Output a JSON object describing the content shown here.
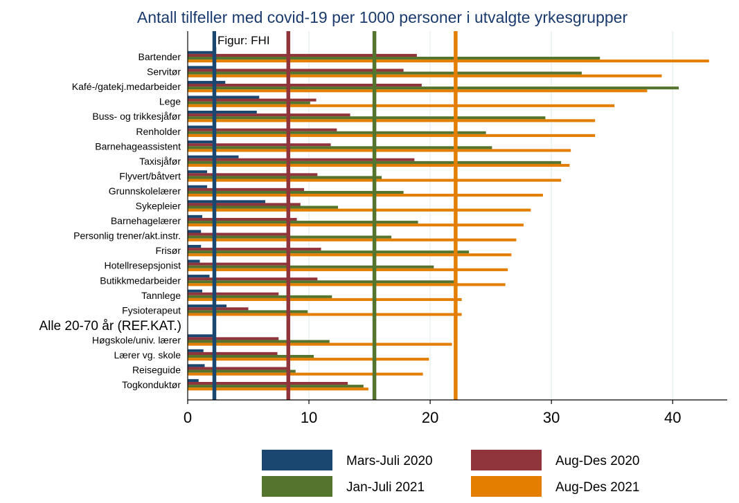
{
  "chart_data": {
    "type": "bar",
    "orientation": "horizontal",
    "title": "Antall tilfeller med covid-19 per 1000 personer i utvalgte yrkesgrupper",
    "annotation": "Figur: FHI",
    "xlabel": "",
    "ylabel": "",
    "xlim": [
      0,
      44.5
    ],
    "xticks": [
      0,
      10,
      20,
      30,
      40
    ],
    "grid": "vertical",
    "categories": [
      "Bartender",
      "Servitør",
      "Kafé-/gatekj.medarbeider",
      "Lege",
      "Buss- og trikkesjåfør",
      "Renholder",
      "Barnehageassistent",
      "Taxisjåfør",
      "Flyvert/båtvert",
      "Grunnskolelærer",
      "Sykepleier",
      "Barnehagelærer",
      "Personlig trener/akt.instr.",
      "Frisør",
      "Hotellresepsjonist",
      "Butikkmedarbeider",
      "Tannlege",
      "Fysioterapeut",
      "Alle 20-70 år (REF.KAT.)",
      "Høgskole/univ. lærer",
      "Lærer vg. skole",
      "Reiseguide",
      "Togkonduktør"
    ],
    "reference_category": "Alle 20-70 år (REF.KAT.)",
    "series": [
      {
        "name": "Mars-Juli 2020",
        "color": "#1a476f",
        "values": [
          2.2,
          2.1,
          3.1,
          5.9,
          5.7,
          2.3,
          2.3,
          4.2,
          1.6,
          1.6,
          6.4,
          1.2,
          1.1,
          1.1,
          1.0,
          1.8,
          1.2,
          3.2,
          2.2,
          2.2,
          1.3,
          1.4,
          0.9
        ]
      },
      {
        "name": "Aug-Des 2020",
        "color": "#90353b",
        "values": [
          18.9,
          17.8,
          19.3,
          10.6,
          13.4,
          12.3,
          11.8,
          18.7,
          10.7,
          9.6,
          9.3,
          9.0,
          8.4,
          11.0,
          8.4,
          10.7,
          7.5,
          5.0,
          8.3,
          7.5,
          7.4,
          8.3,
          13.2
        ]
      },
      {
        "name": "Jan-Juli 2021",
        "color": "#55752f",
        "values": [
          34.0,
          32.5,
          40.5,
          10.1,
          29.5,
          24.6,
          25.1,
          30.8,
          16.0,
          17.8,
          12.4,
          19.0,
          16.8,
          23.2,
          20.3,
          22.1,
          11.9,
          9.9,
          15.4,
          11.7,
          10.4,
          8.9,
          14.5
        ]
      },
      {
        "name": "Aug-Des 2021",
        "color": "#e37e00",
        "values": [
          43.0,
          39.1,
          37.9,
          35.2,
          33.6,
          33.6,
          31.6,
          31.5,
          30.8,
          29.3,
          28.3,
          27.7,
          27.1,
          26.7,
          26.4,
          26.2,
          22.6,
          22.6,
          22.1,
          21.8,
          19.9,
          19.4,
          14.9
        ]
      }
    ],
    "legend": {
      "position": "bottom",
      "columns": 2,
      "order": [
        "Mars-Juli 2020",
        "Aug-Des 2020",
        "Jan-Juli 2021",
        "Aug-Des 2021"
      ]
    }
  }
}
